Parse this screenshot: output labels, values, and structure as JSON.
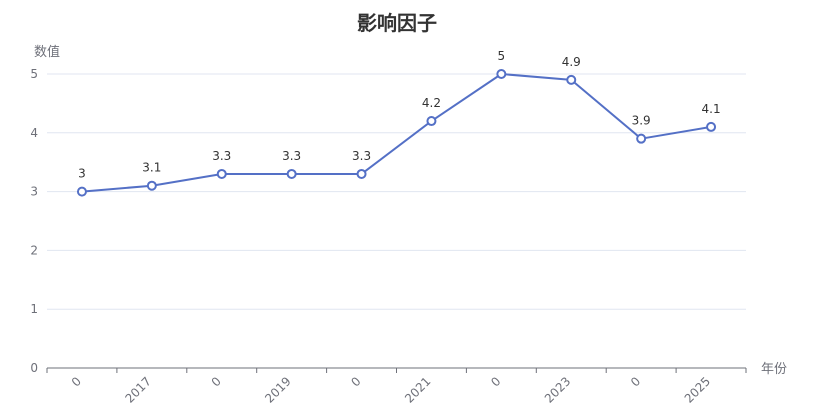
{
  "chart_data": {
    "type": "line",
    "title": "影响因子",
    "xlabel": "年份",
    "ylabel": "数值",
    "categories": [
      "0",
      "2017",
      "0",
      "2019",
      "0",
      "2021",
      "0",
      "2023",
      "0",
      "2025"
    ],
    "series": [
      {
        "values": [
          3,
          3.1,
          3.3,
          3.3,
          3.3,
          4.2,
          5,
          4.9,
          3.9,
          4.1
        ]
      }
    ],
    "ylim": [
      0,
      5
    ],
    "yticks": [
      0,
      1,
      2,
      3,
      4,
      5
    ],
    "grid": true,
    "legend": "none",
    "colors": {
      "line": "#5470c6",
      "grid": "#e0e6f1",
      "axis": "#6e7079",
      "text": "#333333"
    }
  }
}
